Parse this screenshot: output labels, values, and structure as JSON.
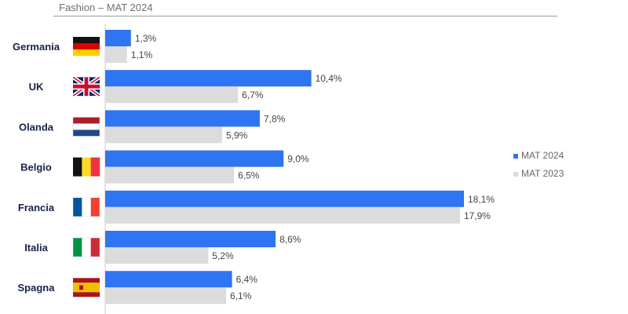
{
  "header": {
    "subtitle": "Fashion – MAT 2024"
  },
  "chart_data": {
    "type": "bar",
    "orientation": "horizontal",
    "title": "",
    "subtitle": "Fashion – MAT 2024",
    "categories": [
      "Germania",
      "UK",
      "Olanda",
      "Belgio",
      "Francia",
      "Italia",
      "Spagna"
    ],
    "series": [
      {
        "name": "MAT 2024",
        "color": "#2f74f0",
        "values": [
          1.3,
          10.4,
          7.8,
          9.0,
          18.1,
          8.6,
          6.4
        ],
        "labels": [
          "1,3%",
          "10,4%",
          "7,8%",
          "9,0%",
          "18,1%",
          "8,6%",
          "6,4%"
        ]
      },
      {
        "name": "MAT 2023",
        "color": "#dcdcdc",
        "values": [
          1.1,
          6.7,
          5.9,
          6.5,
          17.9,
          5.2,
          6.1
        ],
        "labels": [
          "1,1%",
          "6,7%",
          "5,9%",
          "6,5%",
          "17,9%",
          "5,2%",
          "6,1%"
        ]
      }
    ],
    "flags": [
      "germany-flag-icon",
      "uk-flag-icon",
      "netherlands-flag-icon",
      "belgium-flag-icon",
      "france-flag-icon",
      "italy-flag-icon",
      "spain-flag-icon"
    ],
    "legend": {
      "entries": [
        "MAT 2024",
        "MAT 2023"
      ],
      "position": "right"
    },
    "xlim": [
      0,
      18.1
    ],
    "grid": false,
    "axes": {
      "x_visible": false,
      "y_axis_line": true
    }
  }
}
